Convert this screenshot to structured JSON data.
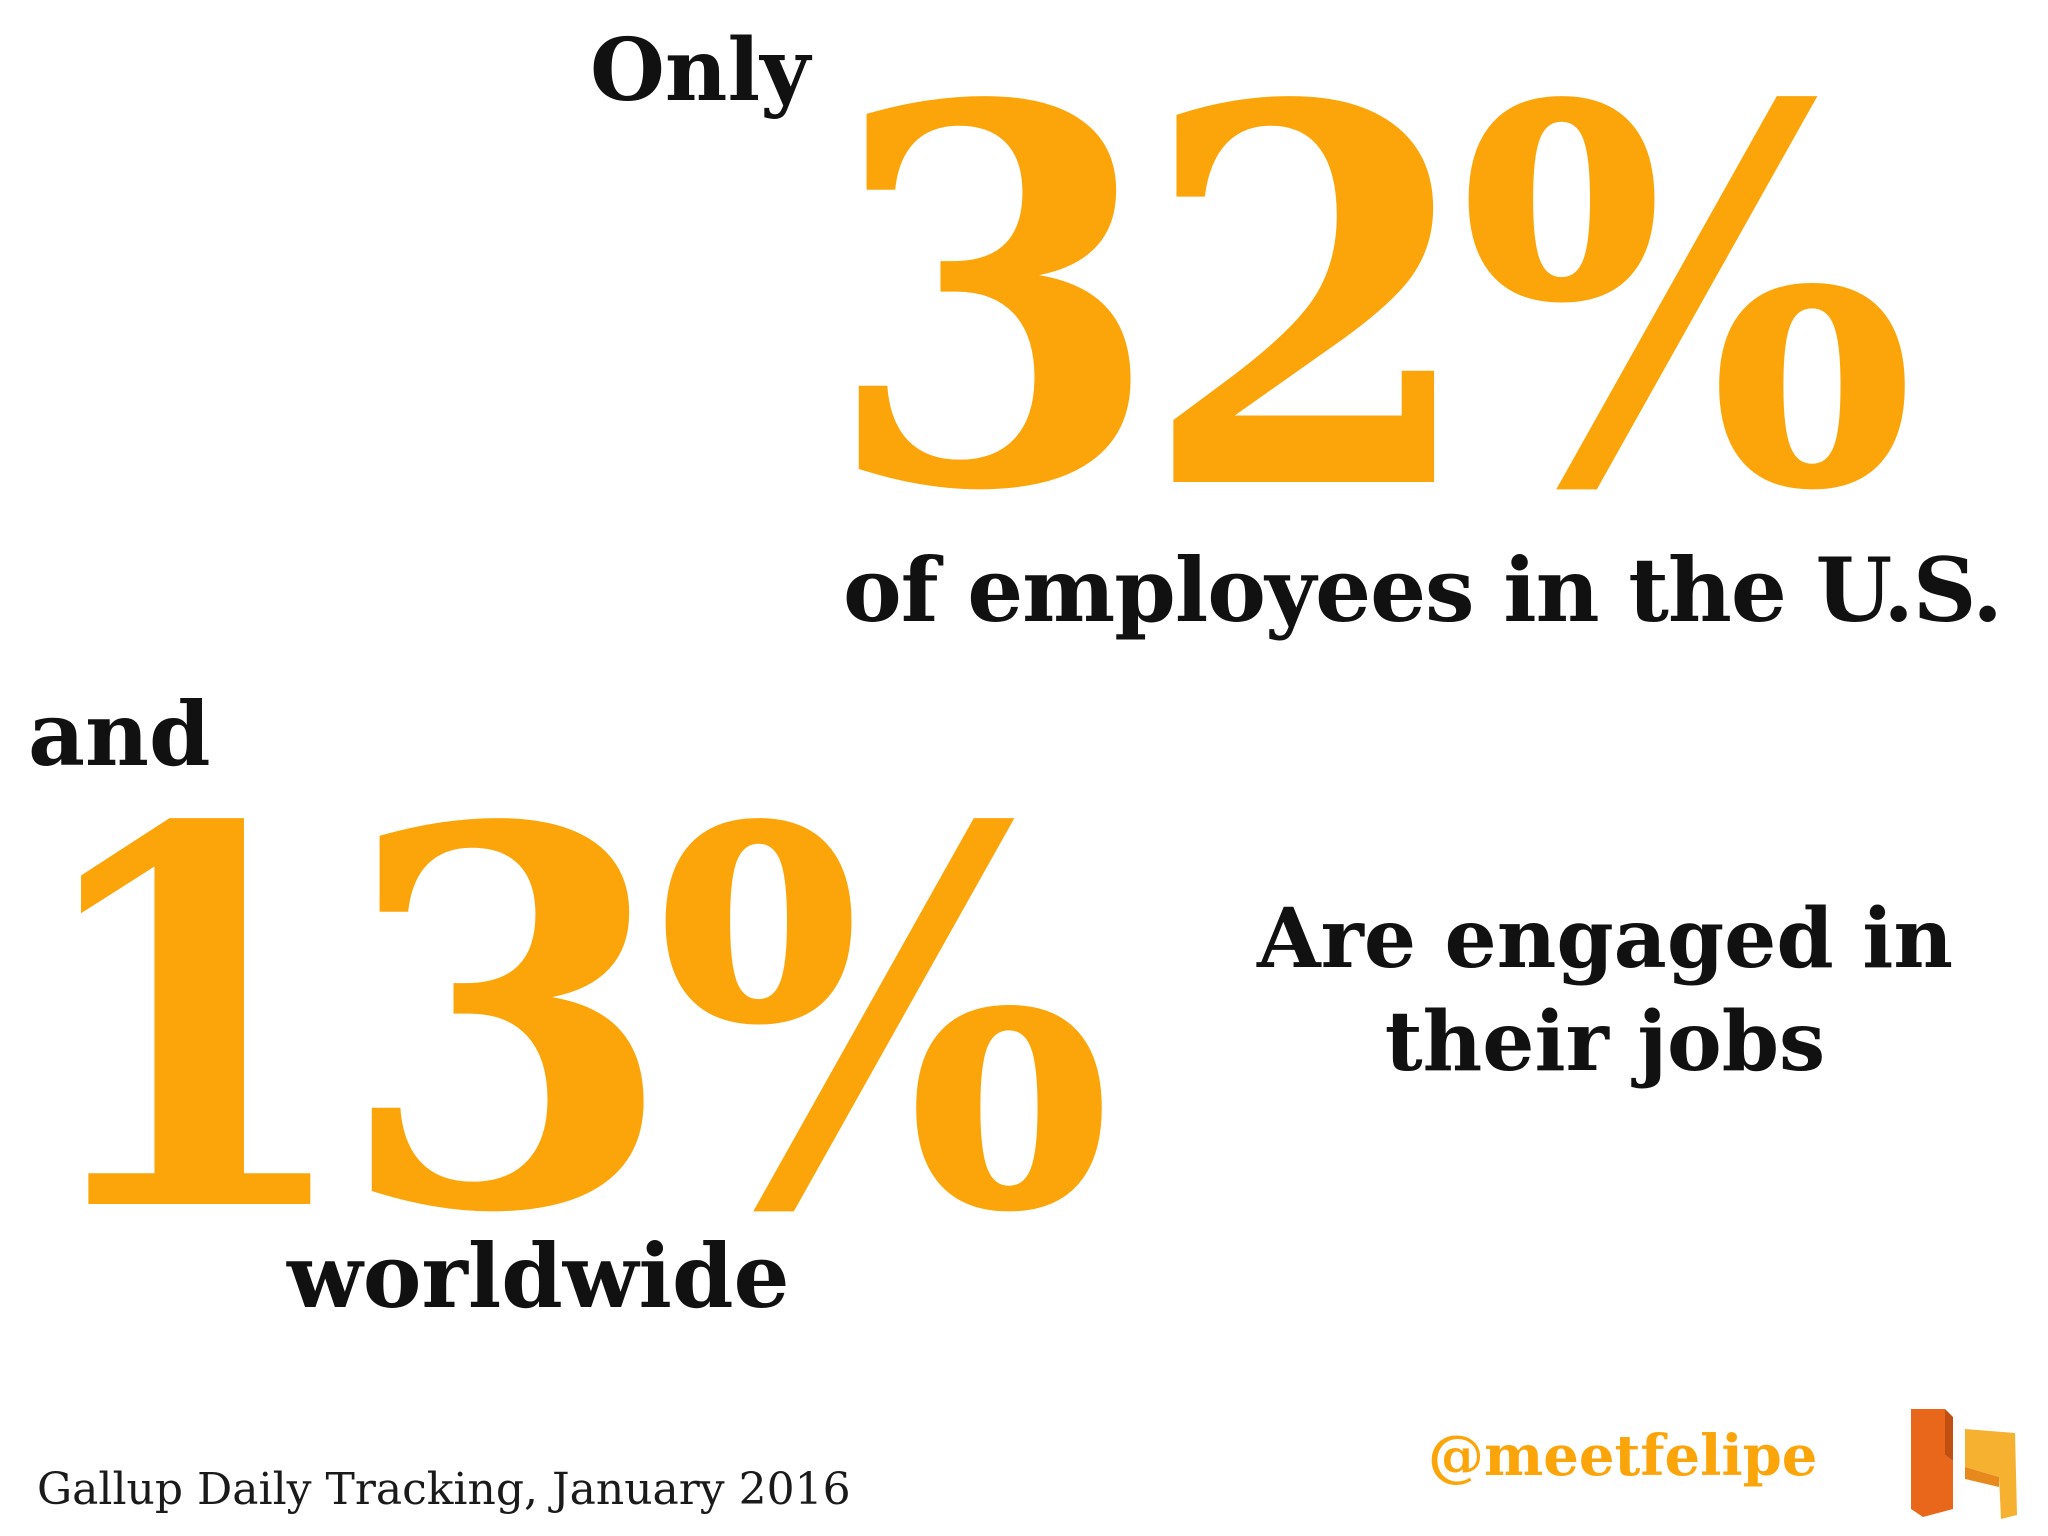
{
  "slide": {
    "intro": "Only",
    "us_percent": "32%",
    "us_text": "of employees in the U.S.",
    "connector": "and",
    "world_percent": "13%",
    "world_text": "worldwide",
    "conclusion_line1": "Are engaged in",
    "conclusion_line2": "their jobs",
    "source": "Gallup Daily Tracking, January 2016",
    "handle": "@meetfelipe"
  },
  "colors": {
    "accent": "#fca50a",
    "text": "#111111",
    "background": "#ffffff",
    "logo_dark": "#e8671a",
    "logo_light": "#f6b130"
  },
  "icons": {
    "logo": "meetfelipe-logo-icon"
  }
}
